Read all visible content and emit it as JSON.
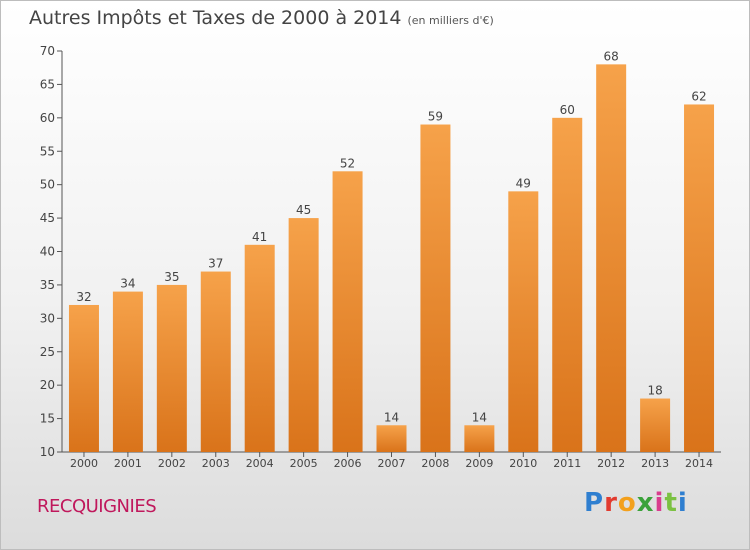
{
  "title": "Autres Impôts et Taxes de 2000 à 2014",
  "unit_note": "(en milliers d'€)",
  "town": "RECQUIGNIES",
  "logo": {
    "text": "Proxiti",
    "letters": [
      "P",
      "r",
      "o",
      "x",
      "i",
      "t",
      "i"
    ]
  },
  "colors": {
    "bar": "#f0902e",
    "bar_dark": "#d9731a",
    "title": "#444444",
    "town": "#c0185c"
  },
  "chart_data": {
    "type": "bar",
    "categories": [
      "2000",
      "2001",
      "2002",
      "2003",
      "2004",
      "2005",
      "2006",
      "2007",
      "2008",
      "2009",
      "2010",
      "2011",
      "2012",
      "2013",
      "2014"
    ],
    "values": [
      32,
      34,
      35,
      37,
      41,
      45,
      52,
      14,
      59,
      14,
      49,
      60,
      68,
      18,
      62
    ],
    "ylim": [
      10,
      70
    ],
    "yticks": [
      10,
      15,
      20,
      25,
      30,
      35,
      40,
      45,
      50,
      55,
      60,
      65,
      70
    ],
    "grid": false,
    "data_labels": true
  }
}
